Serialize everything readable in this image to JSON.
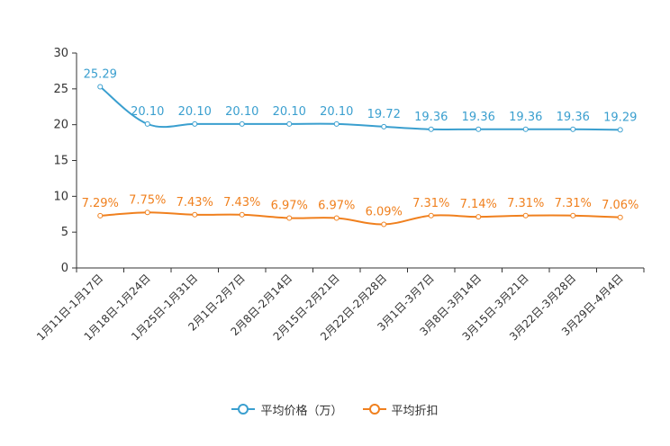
{
  "chart_data": {
    "type": "line",
    "categories": [
      "1月11日-1月17日",
      "1月18日-1月24日",
      "1月25日-1月31日",
      "2月1日-2月7日",
      "2月8日-2月14日",
      "2月15日-2月21日",
      "2月22日-2月28日",
      "3月1日-3月7日",
      "3月8日-3月14日",
      "3月15日-3月21日",
      "3月22日-3月28日",
      "3月29日-4月4日"
    ],
    "ylim": [
      0,
      30
    ],
    "yticks": [
      0,
      5,
      10,
      15,
      20,
      25,
      30
    ],
    "series": [
      {
        "name": "平均价格（万）",
        "color": "#3a9fcf",
        "values": [
          25.29,
          20.1,
          20.1,
          20.1,
          20.1,
          20.1,
          19.72,
          19.36,
          19.36,
          19.36,
          19.36,
          19.29
        ],
        "labels": [
          "25.29",
          "20.10",
          "20.10",
          "20.10",
          "20.10",
          "20.10",
          "19.72",
          "19.36",
          "19.36",
          "19.36",
          "19.36",
          "19.29"
        ]
      },
      {
        "name": "平均折扣",
        "color": "#f0801e",
        "values": [
          7.29,
          7.75,
          7.43,
          7.43,
          6.97,
          6.97,
          6.09,
          7.31,
          7.14,
          7.31,
          7.31,
          7.06
        ],
        "labels": [
          "7.29%",
          "7.75%",
          "7.43%",
          "7.43%",
          "6.97%",
          "6.97%",
          "6.09%",
          "7.31%",
          "7.14%",
          "7.31%",
          "7.31%",
          "7.06%"
        ]
      }
    ],
    "legend_position": "bottom-center"
  }
}
